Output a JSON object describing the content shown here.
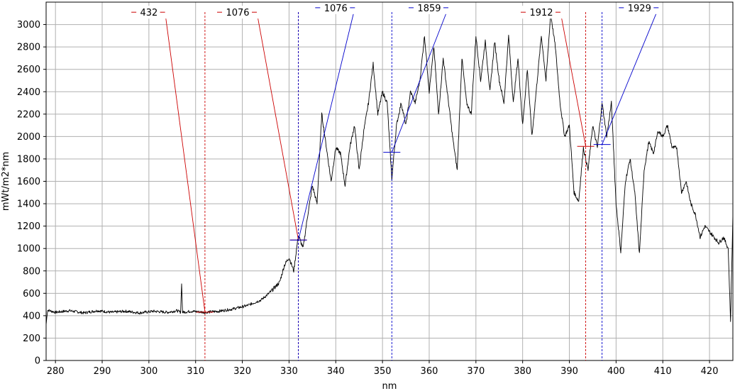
{
  "chart_data": {
    "type": "line",
    "title": "",
    "xlabel": "nm",
    "ylabel": "mWt/m2*nm",
    "xlim": [
      278,
      425
    ],
    "ylim": [
      0,
      3200
    ],
    "grid": true,
    "xticks": [
      280,
      290,
      300,
      310,
      320,
      330,
      340,
      350,
      360,
      370,
      380,
      390,
      400,
      410,
      420
    ],
    "yticks": [
      0,
      200,
      400,
      600,
      800,
      1000,
      1200,
      1400,
      1600,
      1800,
      2000,
      2200,
      2400,
      2600,
      2800,
      3000
    ],
    "series": [
      {
        "color": "#000000",
        "points": [
          [
            278,
            320
          ],
          [
            278.3,
            450
          ],
          [
            280,
            430
          ],
          [
            283,
            445
          ],
          [
            286,
            425
          ],
          [
            289,
            445
          ],
          [
            292,
            430
          ],
          [
            295,
            440
          ],
          [
            298,
            425
          ],
          [
            301,
            440
          ],
          [
            304,
            430
          ],
          [
            306,
            445
          ],
          [
            306.8,
            430
          ],
          [
            307,
            700
          ],
          [
            307.2,
            430
          ],
          [
            309,
            440
          ],
          [
            312,
            430
          ],
          [
            315,
            440
          ],
          [
            318,
            460
          ],
          [
            321,
            490
          ],
          [
            324,
            540
          ],
          [
            326,
            610
          ],
          [
            328,
            700
          ],
          [
            329,
            850
          ],
          [
            330,
            920
          ],
          [
            331,
            800
          ],
          [
            332,
            1120
          ],
          [
            333,
            1000
          ],
          [
            334,
            1300
          ],
          [
            335,
            1560
          ],
          [
            336,
            1400
          ],
          [
            337,
            2200
          ],
          [
            338,
            1900
          ],
          [
            339,
            1600
          ],
          [
            340,
            1900
          ],
          [
            341,
            1850
          ],
          [
            342,
            1560
          ],
          [
            343,
            1900
          ],
          [
            344,
            2100
          ],
          [
            345,
            1700
          ],
          [
            346,
            2050
          ],
          [
            347,
            2300
          ],
          [
            348,
            2650
          ],
          [
            349,
            2200
          ],
          [
            350,
            2400
          ],
          [
            351,
            2300
          ],
          [
            352,
            1620
          ],
          [
            353,
            2100
          ],
          [
            354,
            2300
          ],
          [
            355,
            2100
          ],
          [
            356,
            2400
          ],
          [
            357,
            2300
          ],
          [
            358,
            2500
          ],
          [
            359,
            2900
          ],
          [
            360,
            2400
          ],
          [
            361,
            2800
          ],
          [
            362,
            2200
          ],
          [
            363,
            2700
          ],
          [
            364,
            2350
          ],
          [
            365,
            2000
          ],
          [
            366,
            1700
          ],
          [
            367,
            2700
          ],
          [
            368,
            2300
          ],
          [
            369,
            2200
          ],
          [
            370,
            2900
          ],
          [
            371,
            2500
          ],
          [
            372,
            2850
          ],
          [
            373,
            2400
          ],
          [
            374,
            2850
          ],
          [
            375,
            2500
          ],
          [
            376,
            2300
          ],
          [
            377,
            2900
          ],
          [
            378,
            2300
          ],
          [
            379,
            2700
          ],
          [
            380,
            2100
          ],
          [
            381,
            2600
          ],
          [
            382,
            2000
          ],
          [
            383,
            2450
          ],
          [
            384,
            2900
          ],
          [
            385,
            2500
          ],
          [
            386,
            3100
          ],
          [
            387,
            2800
          ],
          [
            388,
            2300
          ],
          [
            389,
            2000
          ],
          [
            390,
            2100
          ],
          [
            391,
            1500
          ],
          [
            392,
            1420
          ],
          [
            393,
            1900
          ],
          [
            394,
            1700
          ],
          [
            395,
            2100
          ],
          [
            396,
            1900
          ],
          [
            397,
            2300
          ],
          [
            398,
            2000
          ],
          [
            399,
            2300
          ],
          [
            400,
            1400
          ],
          [
            401,
            970
          ],
          [
            402,
            1600
          ],
          [
            403,
            1800
          ],
          [
            404,
            1500
          ],
          [
            405,
            950
          ],
          [
            406,
            1700
          ],
          [
            407,
            1950
          ],
          [
            408,
            1850
          ],
          [
            409,
            2050
          ],
          [
            410,
            2000
          ],
          [
            411,
            2100
          ],
          [
            412,
            1900
          ],
          [
            413,
            1900
          ],
          [
            414,
            1500
          ],
          [
            415,
            1600
          ],
          [
            416,
            1400
          ],
          [
            417,
            1300
          ],
          [
            418,
            1100
          ],
          [
            419,
            1200
          ],
          [
            420,
            1150
          ],
          [
            421,
            1100
          ],
          [
            422,
            1050
          ],
          [
            423,
            1100
          ],
          [
            424,
            1000
          ],
          [
            424.5,
            350
          ],
          [
            425,
            1300
          ]
        ]
      }
    ],
    "markers": [
      {
        "x": 312,
        "y": 432,
        "color": "#cc0000",
        "label": "432",
        "label_x": 300,
        "label_y": 3110
      },
      {
        "x": 332,
        "y": 1076,
        "color": "#cc0000",
        "label": "1076",
        "label_x": 319,
        "label_y": 3110
      },
      {
        "x": 332,
        "y": 1076,
        "color": "#0000cc",
        "label": "1076",
        "label_x": 340,
        "label_y": 3150
      },
      {
        "x": 352,
        "y": 1859,
        "color": "#0000cc",
        "label": "1859",
        "label_x": 360,
        "label_y": 3150
      },
      {
        "x": 393.5,
        "y": 1912,
        "color": "#cc0000",
        "label": "1912",
        "label_x": 384,
        "label_y": 3110
      },
      {
        "x": 397,
        "y": 1929,
        "color": "#0000cc",
        "label": "1929",
        "label_x": 405,
        "label_y": 3150
      }
    ]
  }
}
